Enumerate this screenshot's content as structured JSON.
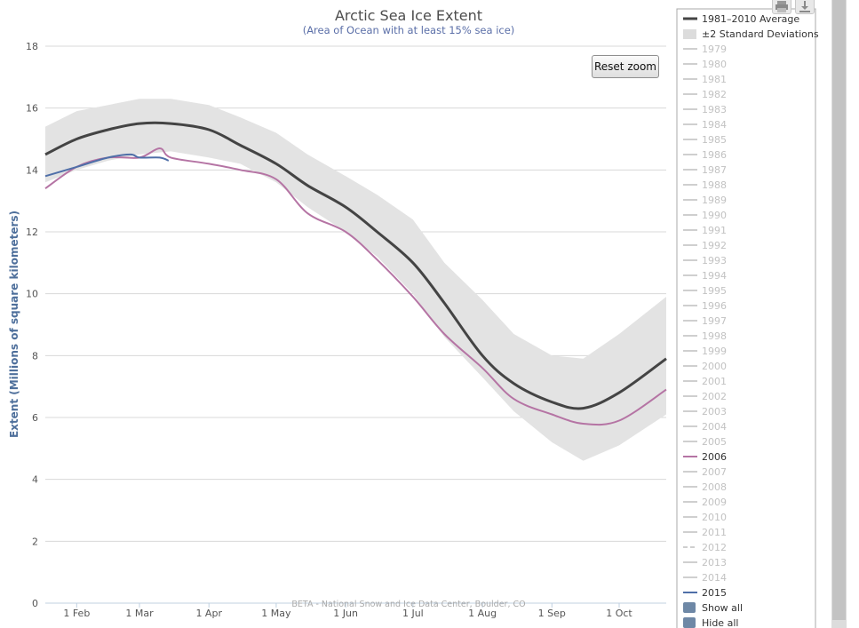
{
  "chart_data": {
    "type": "line",
    "title": "Arctic Sea Ice Extent",
    "subtitle": "(Area of Ocean with at least 15% sea ice)",
    "ylabel": "Extent (Millions of square kilometers)",
    "xlabel": "",
    "ylim": [
      0,
      18
    ],
    "yticks": [
      "0",
      "2",
      "4",
      "6",
      "8",
      "10",
      "12",
      "14",
      "16",
      "18"
    ],
    "x_axis_dates": [
      "Jan 18",
      "Oct 22"
    ],
    "xticks": [
      {
        "label": "1 Feb",
        "date": "Feb 1"
      },
      {
        "label": "1 Mar",
        "date": "Mar 1"
      },
      {
        "label": "1 Apr",
        "date": "Apr 1"
      },
      {
        "label": "1 May",
        "date": "May 1"
      },
      {
        "label": "1 Jun",
        "date": "Jun 1"
      },
      {
        "label": "1 Jul",
        "date": "Jul 1"
      },
      {
        "label": "1 Aug",
        "date": "Aug 1"
      },
      {
        "label": "1 Sep",
        "date": "Sep 1"
      },
      {
        "label": "1 Oct",
        "date": "Oct 1"
      }
    ],
    "grid": true,
    "legend_position": "right",
    "credit": "BETA - National Snow and Ice Data Center, Boulder, CO",
    "band": {
      "name": "±2 Standard Deviations",
      "color": "#e3e3e3",
      "points": [
        [
          "Jan 18",
          15.4,
          13.6
        ],
        [
          "Feb 1",
          15.9,
          14.0
        ],
        [
          "Feb 15",
          16.1,
          14.3
        ],
        [
          "Mar 1",
          16.3,
          14.5
        ],
        [
          "Mar 15",
          16.3,
          14.6
        ],
        [
          "Apr 1",
          16.1,
          14.4
        ],
        [
          "Apr 15",
          15.7,
          14.2
        ],
        [
          "May 1",
          15.2,
          13.6
        ],
        [
          "May 15",
          14.5,
          12.8
        ],
        [
          "Jun 1",
          13.8,
          12.0
        ],
        [
          "Jun 15",
          13.2,
          11.2
        ],
        [
          "Jul 1",
          12.4,
          10.0
        ],
        [
          "Jul 15",
          11.0,
          8.6
        ],
        [
          "Aug 1",
          9.8,
          7.3
        ],
        [
          "Aug 15",
          8.7,
          6.2
        ],
        [
          "Sep 1",
          8.0,
          5.2
        ],
        [
          "Sep 15",
          7.9,
          4.6
        ],
        [
          "Oct 1",
          8.7,
          5.1
        ],
        [
          "Oct 22",
          9.9,
          6.1
        ]
      ]
    },
    "series": [
      {
        "name": "1981-2010 Average",
        "color": "#444444",
        "points": [
          [
            "Jan 18",
            14.5
          ],
          [
            "Feb 1",
            15.0
          ],
          [
            "Feb 15",
            15.3
          ],
          [
            "Mar 1",
            15.5
          ],
          [
            "Mar 15",
            15.5
          ],
          [
            "Apr 1",
            15.3
          ],
          [
            "Apr 15",
            14.8
          ],
          [
            "May 1",
            14.2
          ],
          [
            "May 15",
            13.5
          ],
          [
            "Jun 1",
            12.8
          ],
          [
            "Jun 15",
            12.0
          ],
          [
            "Jul 1",
            11.0
          ],
          [
            "Jul 15",
            9.7
          ],
          [
            "Aug 1",
            8.0
          ],
          [
            "Aug 15",
            7.1
          ],
          [
            "Sep 1",
            6.5
          ],
          [
            "Sep 15",
            6.3
          ],
          [
            "Oct 1",
            6.8
          ],
          [
            "Oct 22",
            7.9
          ]
        ]
      },
      {
        "name": "2006",
        "color": "#b574a4",
        "points": [
          [
            "Jan 18",
            13.4
          ],
          [
            "Feb 1",
            14.1
          ],
          [
            "Feb 15",
            14.4
          ],
          [
            "Mar 1",
            14.4
          ],
          [
            "Mar 10",
            14.7
          ],
          [
            "Mar 15",
            14.4
          ],
          [
            "Apr 1",
            14.2
          ],
          [
            "Apr 15",
            14.0
          ],
          [
            "May 1",
            13.7
          ],
          [
            "May 15",
            12.6
          ],
          [
            "Jun 1",
            12.0
          ],
          [
            "Jun 15",
            11.1
          ],
          [
            "Jul 1",
            9.9
          ],
          [
            "Jul 15",
            8.7
          ],
          [
            "Aug 1",
            7.6
          ],
          [
            "Aug 15",
            6.6
          ],
          [
            "Sep 1",
            6.1
          ],
          [
            "Sep 15",
            5.8
          ],
          [
            "Oct 1",
            5.9
          ],
          [
            "Oct 22",
            6.9
          ]
        ]
      },
      {
        "name": "2015",
        "color": "#4f6fa8",
        "points": [
          [
            "Jan 18",
            13.8
          ],
          [
            "Feb 1",
            14.1
          ],
          [
            "Feb 15",
            14.4
          ],
          [
            "Feb 25",
            14.5
          ],
          [
            "Mar 1",
            14.4
          ],
          [
            "Mar 10",
            14.4
          ],
          [
            "Mar 14",
            14.3
          ]
        ]
      }
    ],
    "legend": {
      "items": [
        {
          "label": "1981–2010 Average",
          "style": "line-dark"
        },
        {
          "label": "±2 Standard Deviations",
          "style": "band"
        },
        {
          "label": "1979",
          "style": "faint"
        },
        {
          "label": "1980",
          "style": "faint"
        },
        {
          "label": "1981",
          "style": "faint"
        },
        {
          "label": "1982",
          "style": "faint"
        },
        {
          "label": "1983",
          "style": "faint"
        },
        {
          "label": "1984",
          "style": "faint"
        },
        {
          "label": "1985",
          "style": "faint"
        },
        {
          "label": "1986",
          "style": "faint"
        },
        {
          "label": "1987",
          "style": "faint"
        },
        {
          "label": "1988",
          "style": "faint"
        },
        {
          "label": "1989",
          "style": "faint"
        },
        {
          "label": "1990",
          "style": "faint"
        },
        {
          "label": "1991",
          "style": "faint"
        },
        {
          "label": "1992",
          "style": "faint"
        },
        {
          "label": "1993",
          "style": "faint"
        },
        {
          "label": "1994",
          "style": "faint"
        },
        {
          "label": "1995",
          "style": "faint"
        },
        {
          "label": "1996",
          "style": "faint"
        },
        {
          "label": "1997",
          "style": "faint"
        },
        {
          "label": "1998",
          "style": "faint"
        },
        {
          "label": "1999",
          "style": "faint"
        },
        {
          "label": "2000",
          "style": "faint"
        },
        {
          "label": "2001",
          "style": "faint"
        },
        {
          "label": "2002",
          "style": "faint"
        },
        {
          "label": "2003",
          "style": "faint"
        },
        {
          "label": "2004",
          "style": "faint"
        },
        {
          "label": "2005",
          "style": "faint"
        },
        {
          "label": "2006",
          "style": "line-pink"
        },
        {
          "label": "2007",
          "style": "faint"
        },
        {
          "label": "2008",
          "style": "faint"
        },
        {
          "label": "2009",
          "style": "faint"
        },
        {
          "label": "2010",
          "style": "faint"
        },
        {
          "label": "2011",
          "style": "faint"
        },
        {
          "label": "2012",
          "style": "faint-dashed"
        },
        {
          "label": "2013",
          "style": "faint"
        },
        {
          "label": "2014",
          "style": "faint"
        },
        {
          "label": "2015",
          "style": "line-blue"
        },
        {
          "label": "Show all",
          "style": "box"
        },
        {
          "label": "Hide all",
          "style": "box"
        }
      ]
    }
  },
  "toolbar": {
    "reset_zoom_label": "Reset zoom",
    "print_icon": "print-icon",
    "download_icon": "download-icon"
  },
  "colors": {
    "faint": "#cfcfcf",
    "box": "#6e88a6",
    "text": "#333333"
  }
}
